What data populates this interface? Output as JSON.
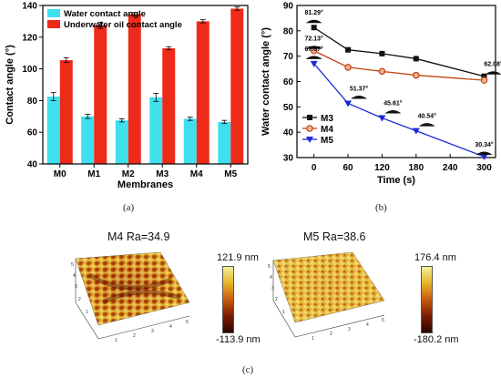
{
  "figure": {
    "captions": {
      "a": "(a)",
      "b": "(b)",
      "c": "(c)"
    }
  },
  "chart_data": [
    {
      "type": "bar",
      "panel": "a",
      "xlabel": "Membranes",
      "ylabel": "Contact angle (°)",
      "categories": [
        "M0",
        "M1",
        "M2",
        "M3",
        "M4",
        "M5"
      ],
      "ylim": [
        40,
        140
      ],
      "yticks": [
        40,
        60,
        80,
        100,
        120,
        140
      ],
      "legend_position": "top-left",
      "series": [
        {
          "name": "Water contact angle",
          "color": "#3fe0ee",
          "values": [
            82.5,
            70,
            67.5,
            82,
            68.5,
            66.5
          ],
          "errors": [
            2.5,
            1.3,
            1,
            2.5,
            1,
            1
          ]
        },
        {
          "name": "Underwater oil contact angle",
          "color": "#ee2a1a",
          "values": [
            105.5,
            127.5,
            134.5,
            113,
            130,
            138
          ],
          "errors": [
            1.5,
            2,
            1,
            1,
            1,
            1
          ]
        }
      ]
    },
    {
      "type": "line",
      "panel": "b",
      "xlabel": "Time (s)",
      "ylabel": "Water contact angle (°)",
      "xlim": [
        -30,
        320
      ],
      "ylim": [
        30,
        90
      ],
      "xticks": [
        0,
        60,
        120,
        180,
        240,
        300
      ],
      "yticks": [
        30,
        40,
        50,
        60,
        70,
        80,
        90
      ],
      "legend_position": "bottom-left",
      "series": [
        {
          "name": "M3",
          "color": "#111111",
          "marker": "square",
          "x": [
            0,
            60,
            120,
            180,
            300
          ],
          "y": [
            81.29,
            72.5,
            71,
            69,
            62.08
          ]
        },
        {
          "name": "M4",
          "color": "#c1440e",
          "marker": "circle",
          "x": [
            0,
            60,
            120,
            180,
            300
          ],
          "y": [
            72.13,
            65.6,
            64,
            62.5,
            60.5
          ]
        },
        {
          "name": "M5",
          "color": "#1a2ad6",
          "marker": "triangle-down",
          "x": [
            0,
            60,
            120,
            180,
            300
          ],
          "y": [
            67.07,
            51.37,
            45.61,
            40.54,
            30.34
          ]
        }
      ],
      "annotations": [
        {
          "text": "81.29°",
          "x": 0,
          "y": 81.29
        },
        {
          "text": "72.13°",
          "x": 0,
          "y": 72.13
        },
        {
          "text": "67.07°",
          "x": 0,
          "y": 67.07
        },
        {
          "text": "51.37°",
          "x": 60,
          "y": 51.37
        },
        {
          "text": "45.61°",
          "x": 120,
          "y": 45.61
        },
        {
          "text": "40.54°",
          "x": 180,
          "y": 40.54
        },
        {
          "text": "30.34°",
          "x": 300,
          "y": 30.34
        },
        {
          "text": "62.08°",
          "x": 300,
          "y": 62.08
        }
      ]
    }
  ],
  "afm": [
    {
      "title": "M4    Ra=34.9",
      "max_label": "121.9 nm",
      "min_label": "-113.9 nm",
      "axis_labels": [
        "5",
        "4",
        "3",
        "2",
        "1",
        "1",
        "2",
        "3",
        "4",
        "5"
      ],
      "colors": [
        "#2a0600",
        "#7a1a02",
        "#c85a10",
        "#e6b52a",
        "#f4ee9a"
      ]
    },
    {
      "title": "M5    Ra=38.6",
      "max_label": "176.4 nm",
      "min_label": "-180.2 nm",
      "axis_labels": [
        "5",
        "4",
        "3",
        "2",
        "1",
        "1",
        "2",
        "3",
        "4",
        "5"
      ],
      "colors": [
        "#2a0600",
        "#7a1a02",
        "#c85a10",
        "#e6b52a",
        "#f4ee9a"
      ]
    }
  ]
}
